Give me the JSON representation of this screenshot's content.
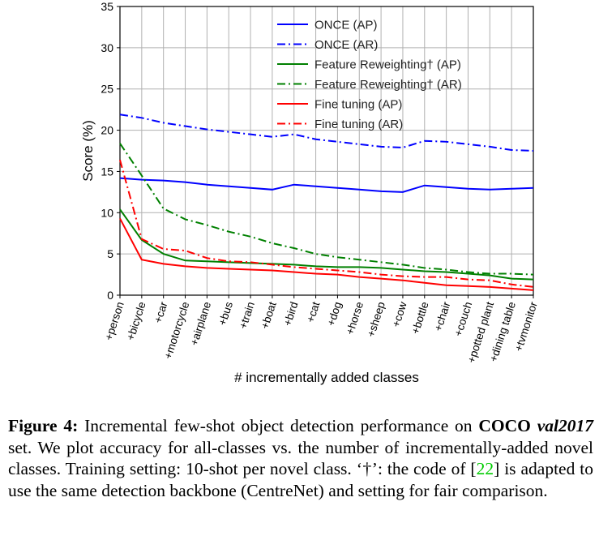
{
  "chart_data": {
    "type": "line",
    "xlabel": "# incrementally added classes",
    "ylabel": "Score (%)",
    "ylim": [
      0,
      35
    ],
    "yticks": [
      0,
      5,
      10,
      15,
      20,
      25,
      30,
      35
    ],
    "grid": true,
    "legend_position": "top-right",
    "categories": [
      "+person",
      "+bicycle",
      "+car",
      "+motorcycle",
      "+airplane",
      "+bus",
      "+train",
      "+boat",
      "+bird",
      "+cat",
      "+dog",
      "+horse",
      "+sheep",
      "+cow",
      "+bottle",
      "+chair",
      "+couch",
      "+potted plant",
      "+dining table",
      "+tvmonitor"
    ],
    "series": [
      {
        "name": "ONCE (AP)",
        "color": "#0000ff",
        "dash": "solid",
        "values": [
          14.2,
          14.0,
          13.9,
          13.7,
          13.4,
          13.2,
          13.0,
          12.8,
          13.4,
          13.2,
          13.0,
          12.8,
          12.6,
          12.5,
          13.3,
          13.1,
          12.9,
          12.8,
          12.9,
          13.0
        ]
      },
      {
        "name": "ONCE (AR)",
        "color": "#0000ff",
        "dash": "dashdot",
        "values": [
          21.9,
          21.5,
          20.9,
          20.5,
          20.1,
          19.8,
          19.5,
          19.2,
          19.5,
          18.9,
          18.6,
          18.3,
          18.0,
          17.9,
          18.7,
          18.6,
          18.3,
          18.0,
          17.6,
          17.5
        ]
      },
      {
        "name": "Feature Reweighting† (AP)",
        "color": "#008000",
        "dash": "solid",
        "values": [
          10.4,
          6.7,
          5.0,
          4.2,
          4.1,
          4.0,
          3.9,
          3.8,
          3.7,
          3.5,
          3.4,
          3.4,
          3.3,
          3.1,
          2.9,
          2.8,
          2.6,
          2.4,
          2.0,
          1.9
        ]
      },
      {
        "name": "Feature Reweighting† (AR)",
        "color": "#008000",
        "dash": "dashdot",
        "values": [
          18.4,
          14.5,
          10.5,
          9.2,
          8.5,
          7.7,
          7.1,
          6.3,
          5.7,
          5.0,
          4.6,
          4.3,
          4.0,
          3.7,
          3.3,
          3.1,
          2.8,
          2.6,
          2.6,
          2.5
        ]
      },
      {
        "name": "Fine tuning (AP)",
        "color": "#ff0000",
        "dash": "solid",
        "values": [
          9.3,
          4.3,
          3.8,
          3.5,
          3.3,
          3.2,
          3.1,
          3.0,
          2.8,
          2.6,
          2.5,
          2.2,
          2.0,
          1.8,
          1.5,
          1.2,
          1.1,
          1.0,
          0.8,
          0.6
        ]
      },
      {
        "name": "Fine tuning (AR)",
        "color": "#ff0000",
        "dash": "dashdot",
        "values": [
          16.4,
          6.8,
          5.6,
          5.4,
          4.5,
          4.1,
          4.0,
          3.7,
          3.4,
          3.2,
          3.0,
          2.8,
          2.5,
          2.3,
          2.2,
          2.2,
          1.9,
          1.8,
          1.3,
          1.0
        ]
      }
    ]
  },
  "caption": {
    "label": "Figure 4:",
    "t1": " Incremental few-shot object detection performance on ",
    "coco": "COCO",
    "val": "val2017",
    "t2": " set.  We plot accuracy for all-classes vs.  the number of incrementally-added novel classes.  Training setting:  10-shot per novel class. ‘†’: the code of [",
    "ref": "22",
    "t3": "] is adapted to use the same detection backbone (CentreNet) and setting for fair comparison."
  }
}
